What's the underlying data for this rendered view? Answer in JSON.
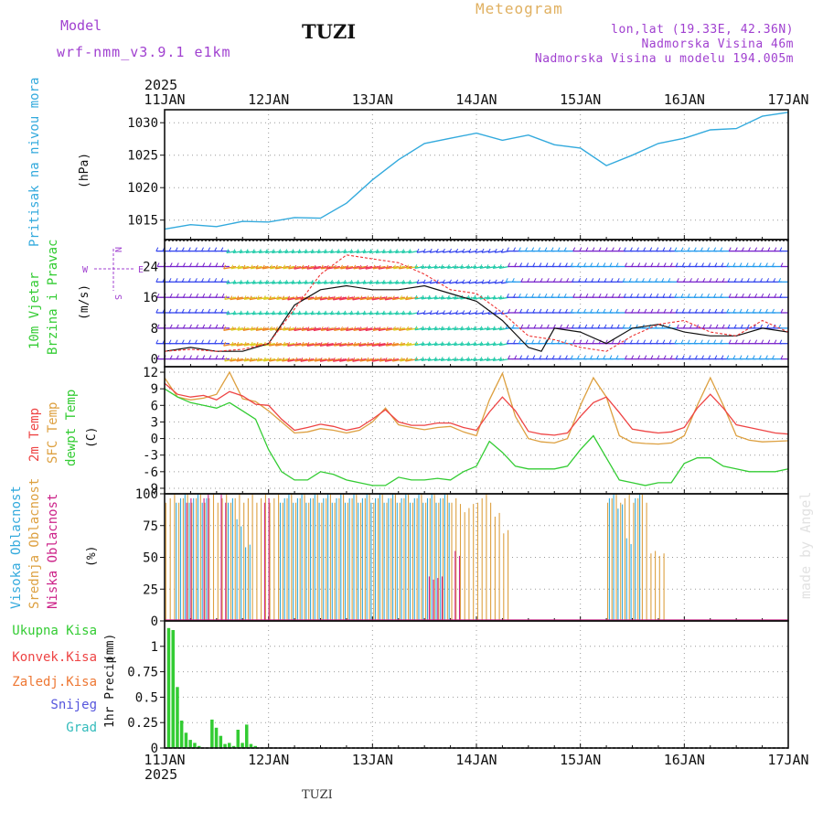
{
  "header": {
    "model_label": "Model",
    "model_name": "wrf-nmm_v3.9.1 e1km",
    "station": "TUZI",
    "title": "Meteogram",
    "lonlat": "lon,lat (19.33E, 42.36N)",
    "altitude": "Nadmorska Visina 46m",
    "model_altitude": "Nadmorska Visina u modelu 194.005m",
    "year_top": "2025",
    "year_bottom": "2025",
    "footer_station": "TUZI",
    "credit": "made by Angel"
  },
  "colors": {
    "pressure": "#33aadd",
    "temp2m": "#ee4444",
    "sfc": "#dda040",
    "dew": "#33cc33",
    "high_cloud": "#33aadd",
    "mid_cloud": "#dda040",
    "low_cloud": "#cc2288",
    "precip": "#33cc33"
  },
  "time_axis": {
    "ticks": [
      "11JAN",
      "12JAN",
      "13JAN",
      "14JAN",
      "15JAN",
      "16JAN",
      "17JAN"
    ],
    "hours": 144
  },
  "chart_data": [
    {
      "type": "line",
      "title": "",
      "ylabel_left": "Pritisak na nivou mora",
      "unit": "(hPa)",
      "ylim": [
        1012,
        1032
      ],
      "yticks": [
        "1015",
        "1020",
        "1025",
        "1030"
      ],
      "ytick_values": [
        1015,
        1020,
        1025,
        1030
      ],
      "series": [
        {
          "name": "",
          "x_hours": [
            0,
            6,
            12,
            18,
            24,
            30,
            36,
            42,
            48,
            54,
            60,
            66,
            72,
            78,
            84,
            90,
            96,
            102,
            108,
            114,
            120,
            126,
            132,
            138,
            144
          ],
          "values": [
            1013.6,
            1014.3,
            1014.0,
            1014.8,
            1014.7,
            1015.4,
            1015.3,
            1017.6,
            1021.2,
            1024.3,
            1026.8,
            1027.6,
            1028.4,
            1027.3,
            1028.1,
            1026.6,
            1026.1,
            1023.4,
            1025.0,
            1026.8,
            1027.6,
            1028.9,
            1029.1,
            1031.0,
            1031.6
          ]
        }
      ]
    },
    {
      "type": "line",
      "title": "",
      "ylabel_left": [
        "10m Vjetar",
        "Brzina i Pravac"
      ],
      "unit": "(m/s)",
      "wind_rose": {
        "n": "N",
        "s": "S",
        "w": "W",
        "e": "E"
      },
      "ylim": [
        -2,
        31
      ],
      "yticks": [
        "0",
        "8",
        "16",
        "24"
      ],
      "ytick_values": [
        0,
        8,
        16,
        24
      ],
      "series": [
        {
          "name": "",
          "x_hours": [
            0,
            6,
            12,
            18,
            24,
            30,
            36,
            42,
            48,
            54,
            60,
            66,
            72,
            78,
            84,
            87,
            90,
            96,
            102,
            108,
            114,
            120,
            126,
            132,
            138,
            144
          ],
          "values": [
            2,
            3,
            2,
            2,
            4,
            14,
            18,
            19,
            18,
            18,
            19,
            17,
            15,
            10,
            3,
            2,
            8,
            7,
            4,
            8,
            9,
            7,
            6,
            6,
            8,
            7
          ]
        },
        {
          "name": "",
          "x_hours": [
            0,
            6,
            12,
            18,
            24,
            30,
            36,
            42,
            48,
            54,
            60,
            66,
            72,
            78,
            84,
            90,
            96,
            102,
            108,
            114,
            120,
            126,
            132,
            138,
            144
          ],
          "values": [
            2,
            2.5,
            2,
            2.5,
            4,
            13,
            22,
            27,
            26,
            25,
            22,
            18,
            17,
            12,
            6,
            5,
            3,
            2,
            6,
            9,
            10,
            7,
            6,
            10,
            7
          ]
        }
      ],
      "barb_rows": [
        0,
        4,
        8,
        12,
        16,
        20,
        24,
        28
      ]
    },
    {
      "type": "line",
      "title": "",
      "ylabel_left": [
        "2m Temp",
        "SFC Temp",
        "dewpt Temp"
      ],
      "unit": "(C)",
      "ylim": [
        -10,
        13
      ],
      "yticks": [
        "12",
        "9",
        "6",
        "3",
        "0",
        "-3",
        "-6",
        "-9"
      ],
      "ytick_values": [
        12,
        9,
        6,
        3,
        0,
        -3,
        -6,
        -9
      ],
      "series": [
        {
          "name": "2m Temp",
          "x_hours": [
            0,
            3,
            6,
            9,
            12,
            15,
            18,
            21,
            24,
            27,
            30,
            33,
            36,
            39,
            42,
            45,
            48,
            51,
            54,
            57,
            60,
            63,
            66,
            69,
            72,
            75,
            78,
            81,
            84,
            87,
            90,
            93,
            96,
            99,
            102,
            105,
            108,
            111,
            114,
            117,
            120,
            123,
            126,
            129,
            132,
            135,
            138,
            141,
            144
          ],
          "values": [
            10,
            8,
            7.5,
            7.8,
            7,
            8.5,
            7.7,
            6.2,
            6,
            3.5,
            1.5,
            2,
            2.6,
            2.2,
            1.5,
            2,
            3.5,
            5.2,
            3,
            2.4,
            2.4,
            2.8,
            2.8,
            2,
            1.5,
            4.8,
            7.5,
            5,
            1.3,
            0.8,
            0.6,
            1,
            4,
            6.5,
            7.5,
            4.7,
            1.7,
            1.3,
            1,
            1.2,
            2,
            5.5,
            8,
            5.5,
            2.5,
            2,
            1.5,
            1,
            0.8
          ]
        },
        {
          "name": "SFC Temp",
          "x_hours": [
            0,
            3,
            6,
            9,
            12,
            15,
            18,
            21,
            24,
            27,
            30,
            33,
            36,
            39,
            42,
            45,
            48,
            51,
            54,
            57,
            60,
            63,
            66,
            69,
            72,
            75,
            78,
            81,
            84,
            87,
            90,
            93,
            96,
            99,
            102,
            105,
            108,
            111,
            114,
            117,
            120,
            123,
            126,
            129,
            132,
            135,
            138,
            141,
            144
          ],
          "values": [
            11,
            7.5,
            7,
            7.3,
            8,
            12,
            7.2,
            6.7,
            5,
            3,
            1,
            1.2,
            1.8,
            1.5,
            1,
            1.5,
            3,
            5.5,
            2.5,
            2,
            1.6,
            2,
            2.2,
            1.2,
            0.5,
            7,
            11.8,
            4,
            0,
            -0.6,
            -0.8,
            0,
            6,
            11,
            7.5,
            0.5,
            -0.7,
            -0.9,
            -1,
            -0.8,
            0.5,
            6,
            11,
            6,
            0.5,
            -0.3,
            -0.6,
            -0.5,
            -0.4
          ]
        },
        {
          "name": "dewpt Temp",
          "x_hours": [
            0,
            3,
            6,
            9,
            12,
            15,
            18,
            21,
            24,
            27,
            30,
            33,
            36,
            39,
            42,
            45,
            48,
            51,
            54,
            57,
            60,
            63,
            66,
            69,
            72,
            75,
            78,
            81,
            84,
            87,
            90,
            93,
            96,
            99,
            102,
            105,
            108,
            111,
            114,
            117,
            120,
            123,
            126,
            129,
            132,
            135,
            138,
            141,
            144
          ],
          "values": [
            9,
            7.5,
            6.5,
            6,
            5.5,
            6.5,
            5,
            3.5,
            -2,
            -6,
            -7.5,
            -7.5,
            -6,
            -6.5,
            -7.5,
            -8,
            -8.5,
            -8.5,
            -7,
            -7.5,
            -7.5,
            -7.2,
            -7.5,
            -6,
            -5,
            -0.5,
            -2.5,
            -5,
            -5.5,
            -5.5,
            -5.5,
            -5,
            -2,
            0.5,
            -3.5,
            -7.5,
            -8,
            -8.5,
            -8,
            -8,
            -4.5,
            -3.5,
            -3.5,
            -5,
            -5.5,
            -6,
            -6,
            -6,
            -5.5
          ]
        }
      ]
    },
    {
      "type": "bar",
      "title": "",
      "ylabel_left": [
        "Visoka Oblacnost",
        "Srednja Oblacnost",
        "Niska Oblacnost"
      ],
      "unit": "(%)",
      "ylim": [
        0,
        100
      ],
      "yticks": [
        "0",
        "25",
        "50",
        "75",
        "100"
      ],
      "ytick_values": [
        0,
        25,
        50,
        75,
        100
      ],
      "series": [
        {
          "name": "Srednja Oblacnost",
          "segments_hours": [
            [
              0,
              68,
              100
            ],
            [
              68,
              72,
              92
            ],
            [
              72,
              76,
              100
            ],
            [
              76,
              78,
              85
            ],
            [
              78,
              80,
              74
            ],
            [
              102,
              104,
              100
            ],
            [
              104,
              112,
              100
            ],
            [
              112,
              116,
              55
            ]
          ]
        },
        {
          "name": "Visoka Oblacnost",
          "segments_hours": [
            [
              2,
              10,
              100
            ],
            [
              14,
              16,
              100
            ],
            [
              16,
              18,
              80
            ],
            [
              18,
              20,
              60
            ],
            [
              26,
              66,
              100
            ],
            [
              102,
              104,
              100
            ],
            [
              104,
              106,
              95
            ],
            [
              106,
              108,
              65
            ],
            [
              108,
              110,
              100
            ]
          ]
        },
        {
          "name": "Niska Oblacnost",
          "segments_hours": [
            [
              4,
              6,
              100
            ],
            [
              8,
              10,
              100
            ],
            [
              12,
              14,
              100
            ],
            [
              22,
              24,
              100
            ],
            [
              60,
              64,
              35
            ],
            [
              66,
              68,
              55
            ]
          ]
        }
      ]
    },
    {
      "type": "bar",
      "title": "",
      "legend": [
        "Ukupna Kisa",
        "Konvek.Kisa",
        "Zaledj.Kisa",
        "Snijeg",
        "Grad"
      ],
      "legend_colors": [
        "#33cc33",
        "#ee4444",
        "#ee7733",
        "#5555dd",
        "#33bbbb"
      ],
      "ylabel_left": "1hr Precip",
      "unit": "(mm)",
      "ylim": [
        0,
        1.25
      ],
      "yticks": [
        "0",
        "0.25",
        "0.5",
        "0.75",
        "1"
      ],
      "ytick_values": [
        0,
        0.25,
        0.5,
        0.75,
        1
      ],
      "series": [
        {
          "name": "Ukupna Kisa",
          "x_hours": [
            1,
            2,
            3,
            4,
            5,
            6,
            7,
            8,
            11,
            12,
            13,
            14,
            15,
            16,
            17,
            18,
            19,
            20,
            21
          ],
          "values": [
            1.18,
            1.16,
            0.6,
            0.27,
            0.15,
            0.08,
            0.05,
            0.02,
            0.28,
            0.2,
            0.12,
            0.04,
            0.05,
            0.02,
            0.18,
            0.05,
            0.23,
            0.04,
            0.02
          ]
        }
      ]
    }
  ]
}
